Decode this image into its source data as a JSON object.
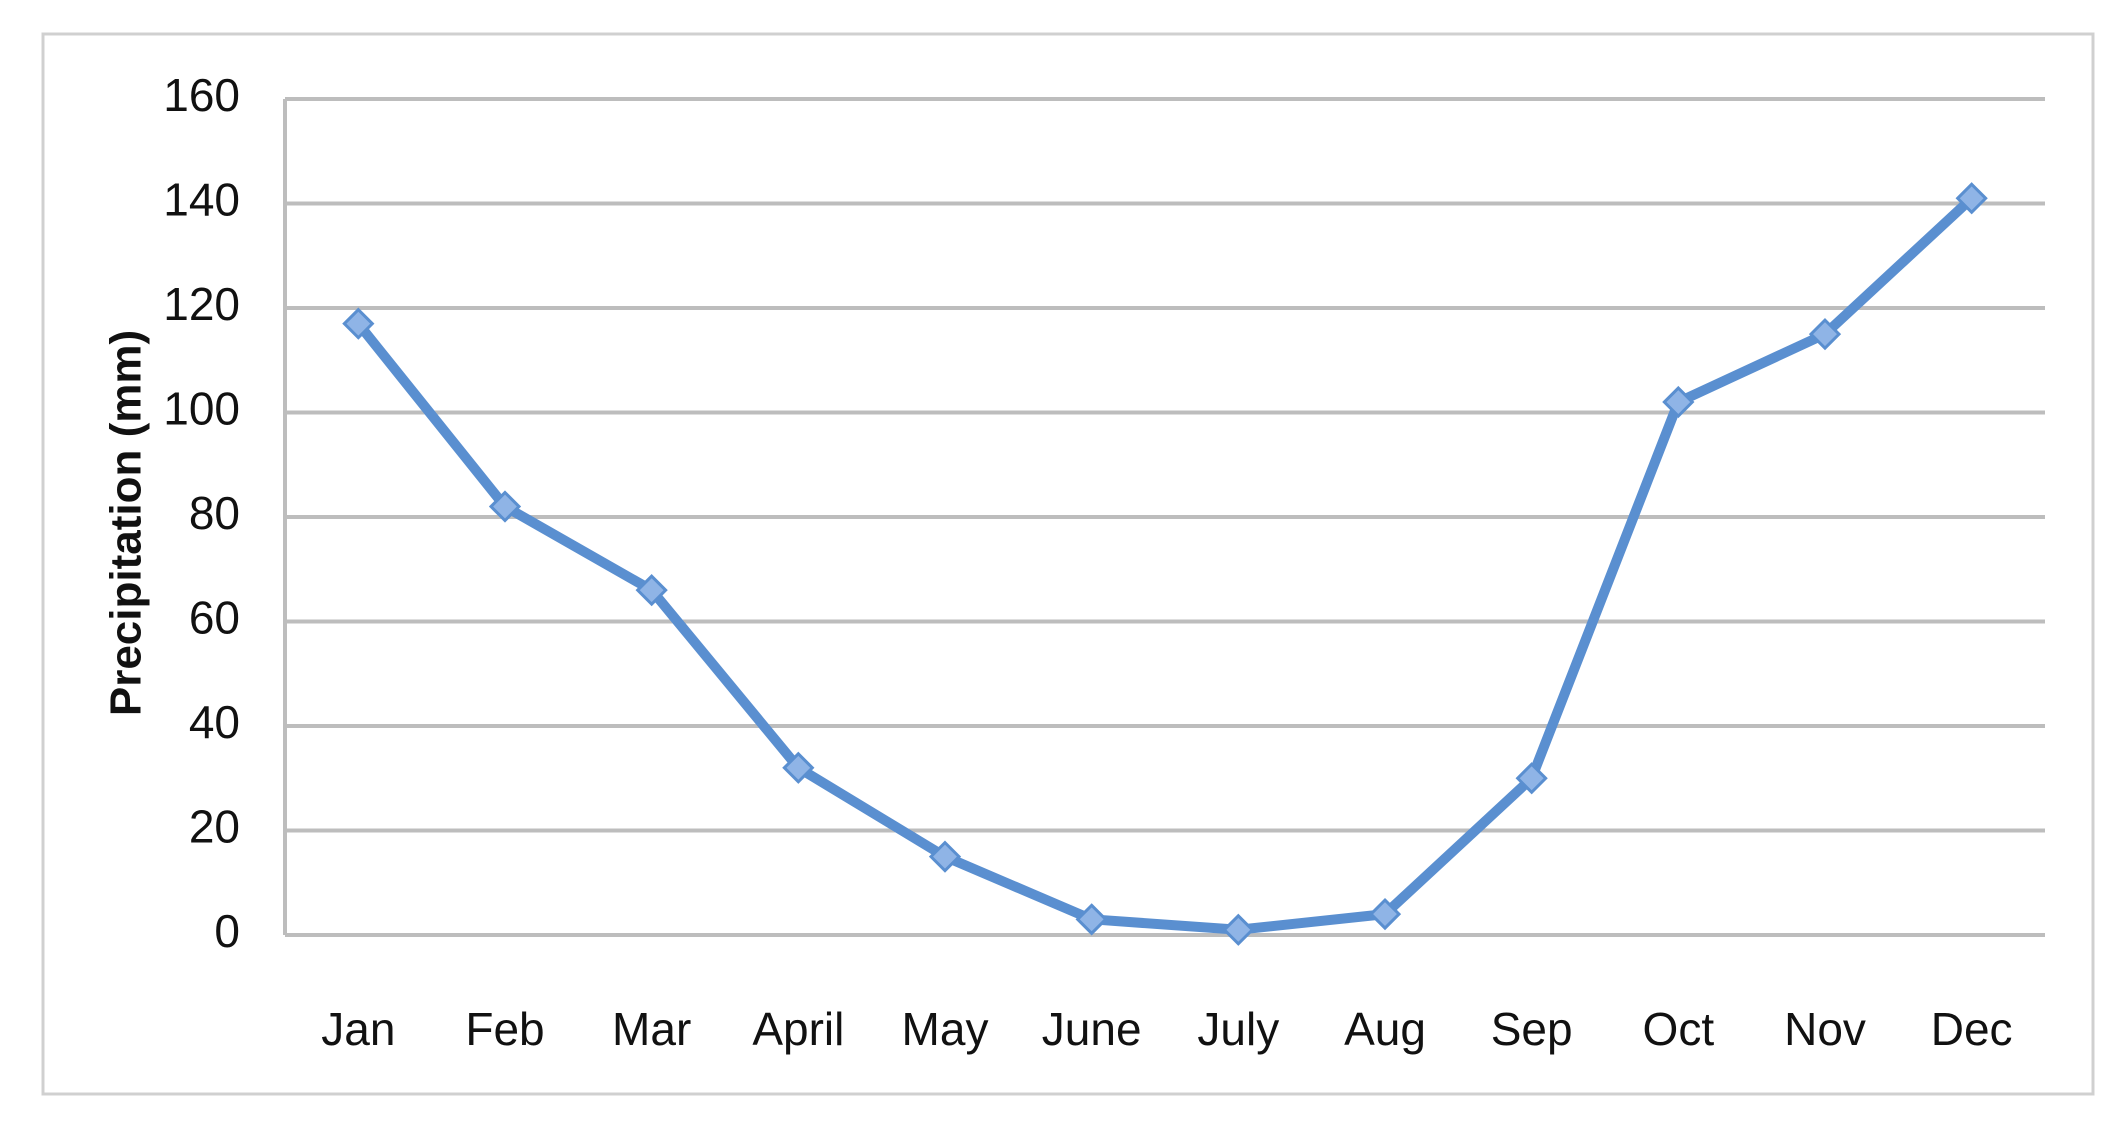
{
  "chart_data": {
    "type": "line",
    "y_label": "Precipitation (mm)",
    "categories": [
      "Jan",
      "Feb",
      "Mar",
      "April",
      "May",
      "June",
      "July",
      "Aug",
      "Sep",
      "Oct",
      "Nov",
      "Dec"
    ],
    "series": [
      {
        "name": "Precipitation",
        "color": "#5a8fd0",
        "values": [
          117,
          82,
          66,
          32,
          15,
          3,
          1,
          4,
          30,
          102,
          115,
          141
        ]
      }
    ],
    "ylim": [
      0,
      160
    ],
    "yticks": [
      0,
      20,
      40,
      60,
      80,
      100,
      120,
      140,
      160
    ],
    "grid": true,
    "legend": false
  }
}
